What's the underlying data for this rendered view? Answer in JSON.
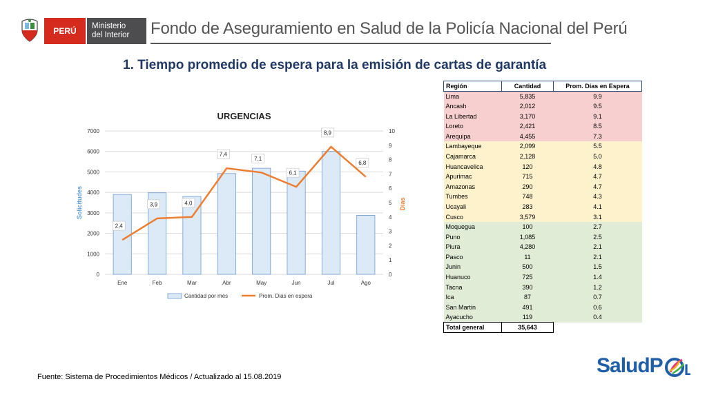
{
  "header": {
    "country": "PERÚ",
    "ministry_line1": "Ministerio",
    "ministry_line2": "del Interior",
    "title": "Fondo de Aseguramiento en Salud de la Policía Nacional del Perú"
  },
  "main_title": "1. Tiempo promedio de espera para la emisión de cartas de garantía",
  "colors": {
    "bar_fill": "#dce9f7",
    "bar_stroke": "#6a9ad0",
    "line": "#ed7d31",
    "left_axis_title": "#5b9bd5",
    "right_axis_title": "#ed7d31",
    "red_group": "#f8cfcf",
    "yellow_group": "#fdf2cc",
    "green_group": "#e0ecd6"
  },
  "chart_data": {
    "type": "bar",
    "title": "URGENCIAS",
    "categories": [
      "Ene",
      "Feb",
      "Mar",
      "Abr",
      "May",
      "Jun",
      "Jul",
      "Ago"
    ],
    "series": [
      {
        "name": "Cantidad por mes",
        "type": "bar",
        "axis": "left",
        "values": [
          3900,
          3980,
          3800,
          4920,
          5180,
          5040,
          6000,
          2880
        ]
      },
      {
        "name": "Prom. Dias en espera",
        "type": "line",
        "axis": "right",
        "values": [
          2.4,
          3.9,
          4.0,
          7.4,
          7.1,
          6.1,
          8.9,
          6.8
        ],
        "labels": [
          "2,4",
          "3,9",
          "4,0",
          "7,4",
          "7,1",
          "6,1",
          "8,9",
          "6,8"
        ]
      }
    ],
    "ylabel": "Solicitudes",
    "y2label": "Dias",
    "ylim": [
      0,
      7000
    ],
    "y2lim": [
      0,
      10
    ],
    "yticks": [
      "0",
      "1000",
      "2000",
      "3000",
      "4000",
      "5000",
      "6000",
      "7000"
    ],
    "y2ticks": [
      "0",
      "1",
      "2",
      "3",
      "4",
      "5",
      "6",
      "7",
      "8",
      "9",
      "10"
    ],
    "grid": true,
    "legend": "bottom"
  },
  "table": {
    "headers": [
      "Región",
      "Cantidad",
      "Prom. Días en Espera"
    ],
    "rows": [
      {
        "region": "Lima",
        "cantidad": "5,835",
        "dias": "9.9",
        "group": "red"
      },
      {
        "region": "Ancash",
        "cantidad": "2,012",
        "dias": "9.5",
        "group": "red"
      },
      {
        "region": "La Libertad",
        "cantidad": "3,170",
        "dias": "9.1",
        "group": "red"
      },
      {
        "region": "Loreto",
        "cantidad": "2,421",
        "dias": "8.5",
        "group": "red"
      },
      {
        "region": "Arequipa",
        "cantidad": "4,455",
        "dias": "7.3",
        "group": "red"
      },
      {
        "region": "Lambayeque",
        "cantidad": "2,099",
        "dias": "5.5",
        "group": "yellow"
      },
      {
        "region": "Cajamarca",
        "cantidad": "2,128",
        "dias": "5.0",
        "group": "yellow"
      },
      {
        "region": "Huancavelica",
        "cantidad": "120",
        "dias": "4.8",
        "group": "yellow"
      },
      {
        "region": "Apurimac",
        "cantidad": "715",
        "dias": "4.7",
        "group": "yellow"
      },
      {
        "region": "Amazonas",
        "cantidad": "290",
        "dias": "4.7",
        "group": "yellow"
      },
      {
        "region": "Tumbes",
        "cantidad": "748",
        "dias": "4.3",
        "group": "yellow"
      },
      {
        "region": "Ucayali",
        "cantidad": "283",
        "dias": "4.1",
        "group": "yellow"
      },
      {
        "region": "Cusco",
        "cantidad": "3,579",
        "dias": "3.1",
        "group": "yellow"
      },
      {
        "region": "Moquegua",
        "cantidad": "100",
        "dias": "2.7",
        "group": "green"
      },
      {
        "region": "Puno",
        "cantidad": "1,085",
        "dias": "2.5",
        "group": "green"
      },
      {
        "region": "Piura",
        "cantidad": "4,280",
        "dias": "2.1",
        "group": "green"
      },
      {
        "region": "Pasco",
        "cantidad": "11",
        "dias": "2.1",
        "group": "green"
      },
      {
        "region": "Junin",
        "cantidad": "500",
        "dias": "1.5",
        "group": "green"
      },
      {
        "region": "Huanuco",
        "cantidad": "725",
        "dias": "1.4",
        "group": "green"
      },
      {
        "region": "Tacna",
        "cantidad": "390",
        "dias": "1.2",
        "group": "green"
      },
      {
        "region": "Ica",
        "cantidad": "87",
        "dias": "0.7",
        "group": "green"
      },
      {
        "region": "San Martin",
        "cantidad": "491",
        "dias": "0.6",
        "group": "green"
      },
      {
        "region": "Ayacucho",
        "cantidad": "119",
        "dias": "0.4",
        "group": "green"
      }
    ],
    "total_label": "Total general",
    "total_value": "35,643"
  },
  "footer": "Fuente: Sistema de Procedimientos Médicos / Actualizado al 15.08.2019",
  "logo": {
    "text": "SaludP",
    "mark_text": "OL"
  }
}
